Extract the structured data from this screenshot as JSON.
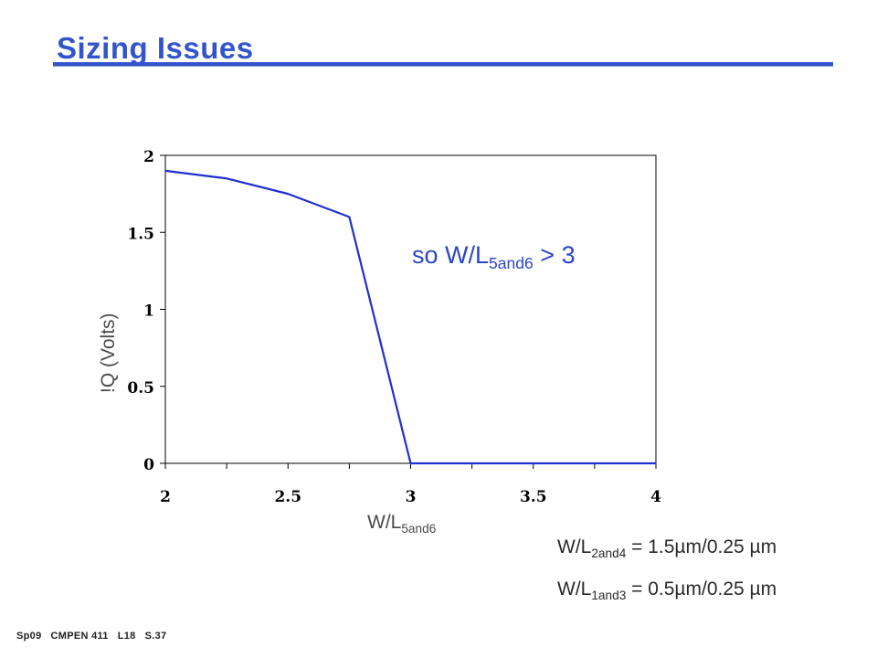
{
  "slide": {
    "title": "Sizing Issues",
    "footer": [
      "Sp09",
      "CMPEN 411",
      "L18",
      "S.37"
    ]
  },
  "annotation": {
    "prefix": "so W/L",
    "sub": "5and6",
    "suffix": " > 3"
  },
  "equations": [
    {
      "prefix": "W/L",
      "sub": "2and4",
      "suffix": " = 1.5µm/0.25 µm"
    },
    {
      "prefix": "W/L",
      "sub": "1and3",
      "suffix": " = 0.5µm/0.25 µm"
    }
  ],
  "colors": {
    "title": "#3355cc",
    "line": "#1f2fd1",
    "annotation": "#2c46c4"
  },
  "chart_data": {
    "type": "line",
    "title": "",
    "xlabel": {
      "prefix": "W/L",
      "sub": "5and6"
    },
    "ylabel": "!Q (Volts)",
    "xlim": [
      2,
      4
    ],
    "ylim": [
      0,
      2
    ],
    "xticks": [
      "2",
      "2.5",
      "3",
      "3.5",
      "4"
    ],
    "yticks": [
      "0",
      "0.5",
      "1",
      "1.5",
      "2"
    ],
    "grid": false,
    "series": [
      {
        "x": [
          2,
          2.25,
          2.5,
          2.75,
          3,
          3.25,
          3.5,
          3.75,
          4
        ],
        "y": [
          1.9,
          1.85,
          1.75,
          1.6,
          0,
          0,
          0,
          0,
          0
        ]
      }
    ]
  }
}
